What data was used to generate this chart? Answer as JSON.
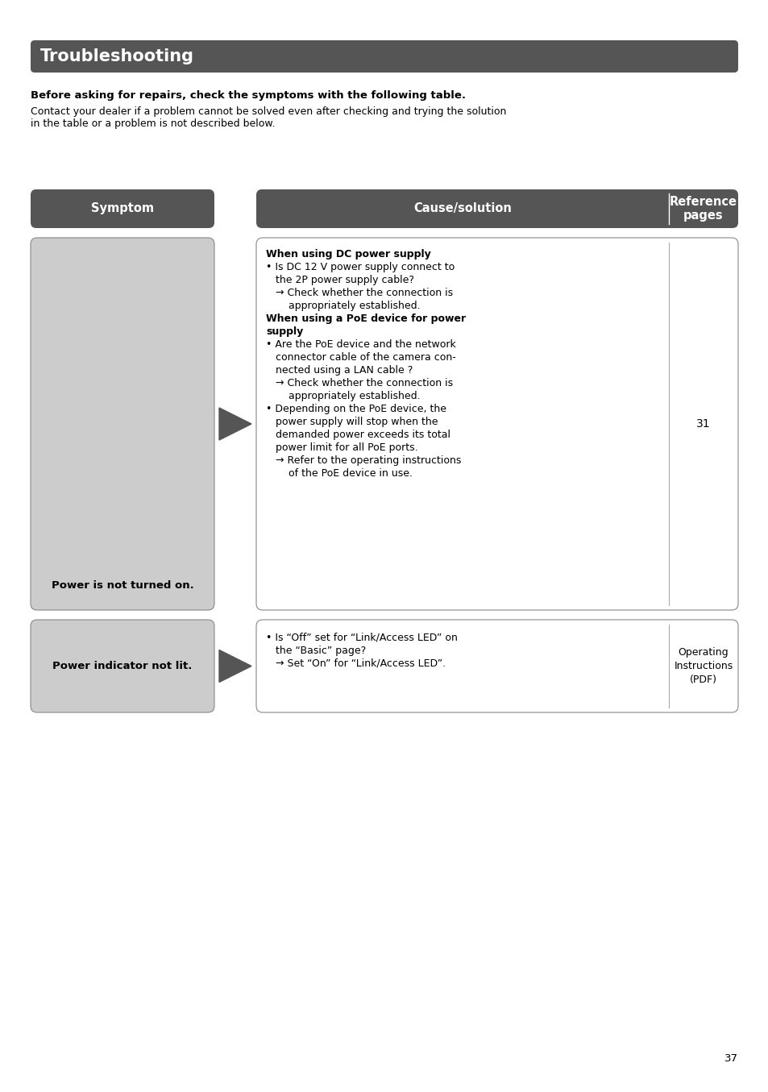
{
  "title": "Troubleshooting",
  "title_bg": "#555555",
  "title_text_color": "#ffffff",
  "page_bg": "#ffffff",
  "bold_line": "Before asking for repairs, check the symptoms with the following table.",
  "intro_line1": "Contact your dealer if a problem cannot be solved even after checking and trying the solution",
  "intro_line2": "in the table or a problem is not described below.",
  "header_bg": "#555555",
  "header_text_color": "#ffffff",
  "col_symptom": "Symptom",
  "col_cause": "Cause/solution",
  "col_ref": "Reference\npages",
  "symptom1": "Power is not turned on.",
  "symptom2": "Power indicator not lit.",
  "ref1": "31",
  "ref2": "Operating\nInstructions\n(PDF)",
  "page_number": "37",
  "symptom_box_bg": "#cccccc",
  "content_box_bg": "#ffffff",
  "box_border_color": "#888888",
  "arrow_color": "#555555",
  "divider_color": "#aaaaaa",
  "font_size_title": 15,
  "font_size_header": 10.5,
  "font_size_body": 9.0,
  "font_size_bold_line": 9.5,
  "font_size_intro": 9.0,
  "font_size_ref": 9.0,
  "font_size_page": 9.5
}
